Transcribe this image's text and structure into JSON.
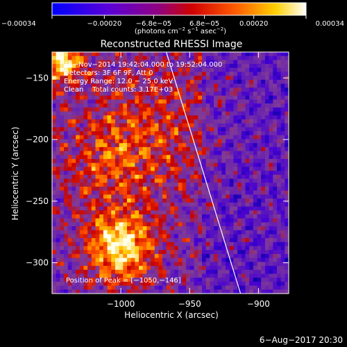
{
  "colorbar": {
    "tick_labels": [
      "−0.00034",
      "−0.00020",
      "−6.8e−05",
      "6.8e−05",
      "0.00020",
      "0.00034"
    ],
    "tick_values": [
      -0.00034,
      -0.0002,
      -6.8e-05,
      6.8e-05,
      0.0002,
      0.00034
    ],
    "range": [
      -0.00034,
      0.00034
    ],
    "units_main": "(photons cm",
    "units_exp1": "−2",
    "units_mid": " s",
    "units_exp2": "−1",
    "units_mid2": " asec",
    "units_exp3": "−2",
    "units_end": ")",
    "colors": [
      "#0000ff",
      "#6a00cc",
      "#c00000",
      "#ff6000",
      "#ffe000",
      "#ffffff"
    ]
  },
  "chart_data": {
    "type": "heatmap",
    "title": "Reconstructed RHESSI Image",
    "xlabel": "Heliocentric X (arcsec)",
    "ylabel": "Heliocentric Y (arcsec)",
    "xlim": [
      -1050,
      -878
    ],
    "ylim": [
      -325,
      -129
    ],
    "x_ticks": [
      -1000,
      -950,
      -900
    ],
    "x_tick_labels": [
      "−1000",
      "−950",
      "−900"
    ],
    "y_ticks": [
      -300,
      -250,
      -200,
      -150
    ],
    "y_tick_labels": [
      "−300",
      "−250",
      "−200",
      "−150"
    ],
    "peak_position": [
      -1050,
      -146
    ],
    "limb_line": [
      [
        -967,
        -129
      ],
      [
        -913,
        -325
      ]
    ],
    "annotations": [
      "18−Nov−2014 19:42:04.000 to 19:52:04.000",
      "Detectors: 3F 6F 9F, Att 0",
      "Energy Range: 12.0 − 25.0 keV",
      "Clean    Total counts: 3.17E+03"
    ],
    "peak_label": "Position of Peak = [−1050,−146]"
  },
  "footer": {
    "timestamp": "6−Aug−2017 20:30"
  }
}
